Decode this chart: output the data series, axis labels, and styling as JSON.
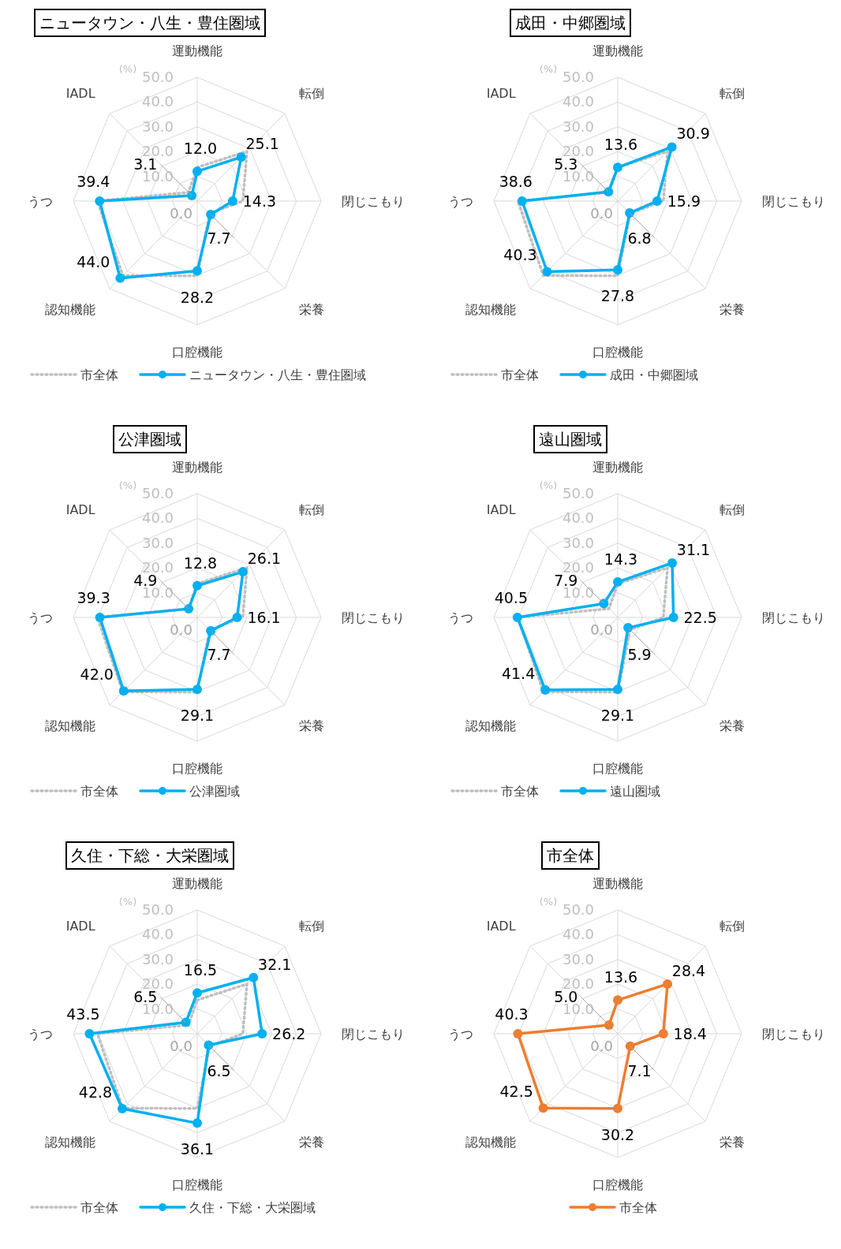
{
  "chart_data": [
    {
      "type": "radar",
      "title": "ニュータウン・八生・豊住圏域",
      "ylabel": "(%)",
      "categories": [
        "運動機能",
        "転倒",
        "閉じこもり",
        "栄養",
        "口腔機能",
        "認知機能",
        "うつ",
        "IADL"
      ],
      "ylim": [
        0,
        50
      ],
      "yticks": [
        {
          "value": 0,
          "label": "0.0"
        },
        {
          "value": 10,
          "label": "10.0"
        },
        {
          "value": 20,
          "label": "20.0"
        },
        {
          "value": 30,
          "label": "30.0"
        },
        {
          "value": 40,
          "label": "40.0"
        },
        {
          "value": 50,
          "label": "50.0"
        }
      ],
      "grid": true,
      "legend": "bottom",
      "series": [
        {
          "name": "市全体",
          "color": "#bfbfbf",
          "line_style": "dotted",
          "marker": "none",
          "values": [
            13.6,
            28.4,
            18.4,
            7.1,
            30.2,
            42.5,
            40.3,
            5.0
          ]
        },
        {
          "name": "ニュータウン・八生・豊住圏域",
          "color": "#00b0f0",
          "line_style": "solid",
          "marker": "circle",
          "values": [
            12.0,
            25.1,
            14.3,
            7.7,
            28.2,
            44.0,
            39.4,
            3.1
          ],
          "value_labels": [
            "12.0",
            "25.1",
            "14.3",
            "7.7",
            "28.2",
            "44.0",
            "39.4",
            "3.1"
          ]
        }
      ]
    },
    {
      "type": "radar",
      "title": "成田・中郷圏域",
      "ylabel": "(%)",
      "categories": [
        "運動機能",
        "転倒",
        "閉じこもり",
        "栄養",
        "口腔機能",
        "認知機能",
        "うつ",
        "IADL"
      ],
      "ylim": [
        0,
        50
      ],
      "yticks": [
        {
          "value": 0,
          "label": "0.0"
        },
        {
          "value": 10,
          "label": "10.0"
        },
        {
          "value": 20,
          "label": "20.0"
        },
        {
          "value": 30,
          "label": "30.0"
        },
        {
          "value": 40,
          "label": "40.0"
        },
        {
          "value": 50,
          "label": "50.0"
        }
      ],
      "grid": true,
      "legend": "bottom",
      "series": [
        {
          "name": "市全体",
          "color": "#bfbfbf",
          "line_style": "dotted",
          "marker": "none",
          "values": [
            13.6,
            28.4,
            18.4,
            7.1,
            30.2,
            42.5,
            40.3,
            5.0
          ]
        },
        {
          "name": "成田・中郷圏域",
          "color": "#00b0f0",
          "line_style": "solid",
          "marker": "circle",
          "values": [
            13.6,
            30.9,
            15.9,
            6.8,
            27.8,
            40.3,
            38.6,
            5.3
          ],
          "value_labels": [
            "13.6",
            "30.9",
            "15.9",
            "6.8",
            "27.8",
            "40.3",
            "38.6",
            "5.3"
          ]
        }
      ]
    },
    {
      "type": "radar",
      "title": "公津圏域",
      "ylabel": "(%)",
      "categories": [
        "運動機能",
        "転倒",
        "閉じこもり",
        "栄養",
        "口腔機能",
        "認知機能",
        "うつ",
        "IADL"
      ],
      "ylim": [
        0,
        50
      ],
      "yticks": [
        {
          "value": 0,
          "label": "0.0"
        },
        {
          "value": 10,
          "label": "10.0"
        },
        {
          "value": 20,
          "label": "20.0"
        },
        {
          "value": 30,
          "label": "30.0"
        },
        {
          "value": 40,
          "label": "40.0"
        },
        {
          "value": 50,
          "label": "50.0"
        }
      ],
      "grid": true,
      "legend": "bottom",
      "series": [
        {
          "name": "市全体",
          "color": "#bfbfbf",
          "line_style": "dotted",
          "marker": "none",
          "values": [
            13.6,
            28.4,
            18.4,
            7.1,
            30.2,
            42.5,
            40.3,
            5.0
          ]
        },
        {
          "name": "公津圏域",
          "color": "#00b0f0",
          "line_style": "solid",
          "marker": "circle",
          "values": [
            12.8,
            26.1,
            16.1,
            7.7,
            29.1,
            42.0,
            39.3,
            4.9
          ],
          "value_labels": [
            "12.8",
            "26.1",
            "16.1",
            "7.7",
            "29.1",
            "42.0",
            "39.3",
            "4.9"
          ]
        }
      ]
    },
    {
      "type": "radar",
      "title": "遠山圏域",
      "ylabel": "(%)",
      "categories": [
        "運動機能",
        "転倒",
        "閉じこもり",
        "栄養",
        "口腔機能",
        "認知機能",
        "うつ",
        "IADL"
      ],
      "ylim": [
        0,
        50
      ],
      "yticks": [
        {
          "value": 0,
          "label": "0.0"
        },
        {
          "value": 10,
          "label": "10.0"
        },
        {
          "value": 20,
          "label": "20.0"
        },
        {
          "value": 30,
          "label": "30.0"
        },
        {
          "value": 40,
          "label": "40.0"
        },
        {
          "value": 50,
          "label": "50.0"
        }
      ],
      "grid": true,
      "legend": "bottom",
      "series": [
        {
          "name": "市全体",
          "color": "#bfbfbf",
          "line_style": "dotted",
          "marker": "none",
          "values": [
            13.6,
            28.4,
            18.4,
            7.1,
            30.2,
            42.5,
            40.3,
            5.0
          ]
        },
        {
          "name": "遠山圏域",
          "color": "#00b0f0",
          "line_style": "solid",
          "marker": "circle",
          "values": [
            14.3,
            31.1,
            22.5,
            5.9,
            29.1,
            41.4,
            40.5,
            7.9
          ],
          "value_labels": [
            "14.3",
            "31.1",
            "22.5",
            "5.9",
            "29.1",
            "41.4",
            "40.5",
            "7.9"
          ]
        }
      ]
    },
    {
      "type": "radar",
      "title": "久住・下総・大栄圏域",
      "ylabel": "(%)",
      "categories": [
        "運動機能",
        "転倒",
        "閉じこもり",
        "栄養",
        "口腔機能",
        "認知機能",
        "うつ",
        "IADL"
      ],
      "ylim": [
        0,
        50
      ],
      "yticks": [
        {
          "value": 0,
          "label": "0.0"
        },
        {
          "value": 10,
          "label": "10.0"
        },
        {
          "value": 20,
          "label": "20.0"
        },
        {
          "value": 30,
          "label": "30.0"
        },
        {
          "value": 40,
          "label": "40.0"
        },
        {
          "value": 50,
          "label": "50.0"
        }
      ],
      "grid": true,
      "legend": "bottom",
      "series": [
        {
          "name": "市全体",
          "color": "#bfbfbf",
          "line_style": "dotted",
          "marker": "none",
          "values": [
            13.6,
            28.4,
            18.4,
            7.1,
            30.2,
            42.5,
            40.3,
            5.0
          ]
        },
        {
          "name": "久住・下総・大栄圏域",
          "color": "#00b0f0",
          "line_style": "solid",
          "marker": "circle",
          "values": [
            16.5,
            32.1,
            26.2,
            6.5,
            36.1,
            42.8,
            43.5,
            6.5
          ],
          "value_labels": [
            "16.5",
            "32.1",
            "26.2",
            "6.5",
            "36.1",
            "42.8",
            "43.5",
            "6.5"
          ]
        }
      ]
    },
    {
      "type": "radar",
      "title": "市全体",
      "ylabel": "(%)",
      "categories": [
        "運動機能",
        "転倒",
        "閉じこもり",
        "栄養",
        "口腔機能",
        "認知機能",
        "うつ",
        "IADL"
      ],
      "ylim": [
        0,
        50
      ],
      "yticks": [
        {
          "value": 0,
          "label": "0.0"
        },
        {
          "value": 10,
          "label": "10.0"
        },
        {
          "value": 20,
          "label": "20.0"
        },
        {
          "value": 30,
          "label": "30.0"
        },
        {
          "value": 40,
          "label": "40.0"
        },
        {
          "value": 50,
          "label": "50.0"
        }
      ],
      "grid": true,
      "legend": "bottom",
      "series": [
        {
          "name": "市全体",
          "color": "#ed7d31",
          "line_style": "solid",
          "marker": "circle",
          "values": [
            13.6,
            28.4,
            18.4,
            7.1,
            30.2,
            42.5,
            40.3,
            5.0
          ],
          "value_labels": [
            "13.6",
            "28.4",
            "18.4",
            "7.1",
            "30.2",
            "42.5",
            "40.3",
            "5.0"
          ]
        }
      ]
    }
  ]
}
